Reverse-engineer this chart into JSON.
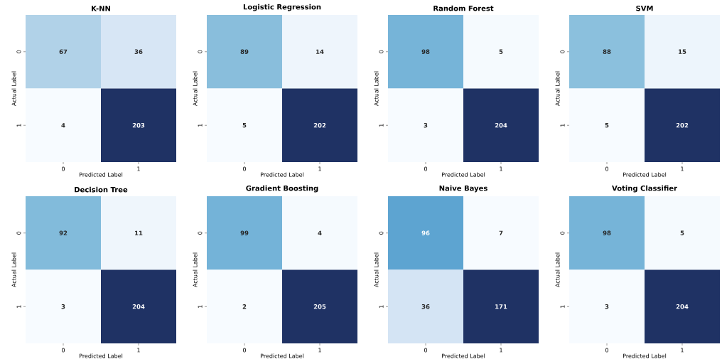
{
  "chart_data": [
    {
      "type": "heatmap",
      "title": "K-NN",
      "xlabel": "Predicted Label",
      "ylabel": "Actual Label",
      "categories": [
        "0",
        "1"
      ],
      "y_categories": [
        "0",
        "1"
      ],
      "cells": [
        [
          67,
          36
        ],
        [
          4,
          203
        ]
      ],
      "data_labels": true
    },
    {
      "type": "heatmap",
      "title": "Logistic Regression",
      "xlabel": "Predicted Label",
      "ylabel": "Actual Label",
      "categories": [
        "0",
        "1"
      ],
      "y_categories": [
        "0",
        "1"
      ],
      "cells": [
        [
          89,
          14
        ],
        [
          5,
          202
        ]
      ],
      "data_labels": true
    },
    {
      "type": "heatmap",
      "title": "Random Forest",
      "xlabel": "Predicted Label",
      "ylabel": "Actual Label",
      "categories": [
        "0",
        "1"
      ],
      "y_categories": [
        "0",
        "1"
      ],
      "cells": [
        [
          98,
          5
        ],
        [
          3,
          204
        ]
      ],
      "data_labels": true
    },
    {
      "type": "heatmap",
      "title": "SVM",
      "xlabel": "Predicted Label",
      "ylabel": "Actual Label",
      "categories": [
        "0",
        "1"
      ],
      "y_categories": [
        "0",
        "1"
      ],
      "cells": [
        [
          88,
          15
        ],
        [
          5,
          202
        ]
      ],
      "data_labels": true
    },
    {
      "type": "heatmap",
      "title": "Decision Tree",
      "xlabel": "Predicted Label",
      "ylabel": "Actual Label",
      "categories": [
        "0",
        "1"
      ],
      "y_categories": [
        "0",
        "1"
      ],
      "cells": [
        [
          92,
          11
        ],
        [
          3,
          204
        ]
      ],
      "data_labels": true
    },
    {
      "type": "heatmap",
      "title": "Gradient Boosting",
      "xlabel": "Predicted Label",
      "ylabel": "Actual Label",
      "categories": [
        "0",
        "1"
      ],
      "y_categories": [
        "0",
        "1"
      ],
      "cells": [
        [
          99,
          4
        ],
        [
          2,
          205
        ]
      ],
      "data_labels": true
    },
    {
      "type": "heatmap",
      "title": "Naive Bayes",
      "xlabel": "Predicted Label",
      "ylabel": "Actual Label",
      "categories": [
        "0",
        "1"
      ],
      "y_categories": [
        "0",
        "1"
      ],
      "cells": [
        [
          96,
          7
        ],
        [
          36,
          171
        ]
      ],
      "data_labels": true
    },
    {
      "type": "heatmap",
      "title": "Voting Classifier",
      "xlabel": "Predicted Label",
      "ylabel": "Actual Label",
      "categories": [
        "0",
        "1"
      ],
      "y_categories": [
        "0",
        "1"
      ],
      "cells": [
        [
          98,
          5
        ],
        [
          3,
          204
        ]
      ],
      "data_labels": true
    }
  ]
}
